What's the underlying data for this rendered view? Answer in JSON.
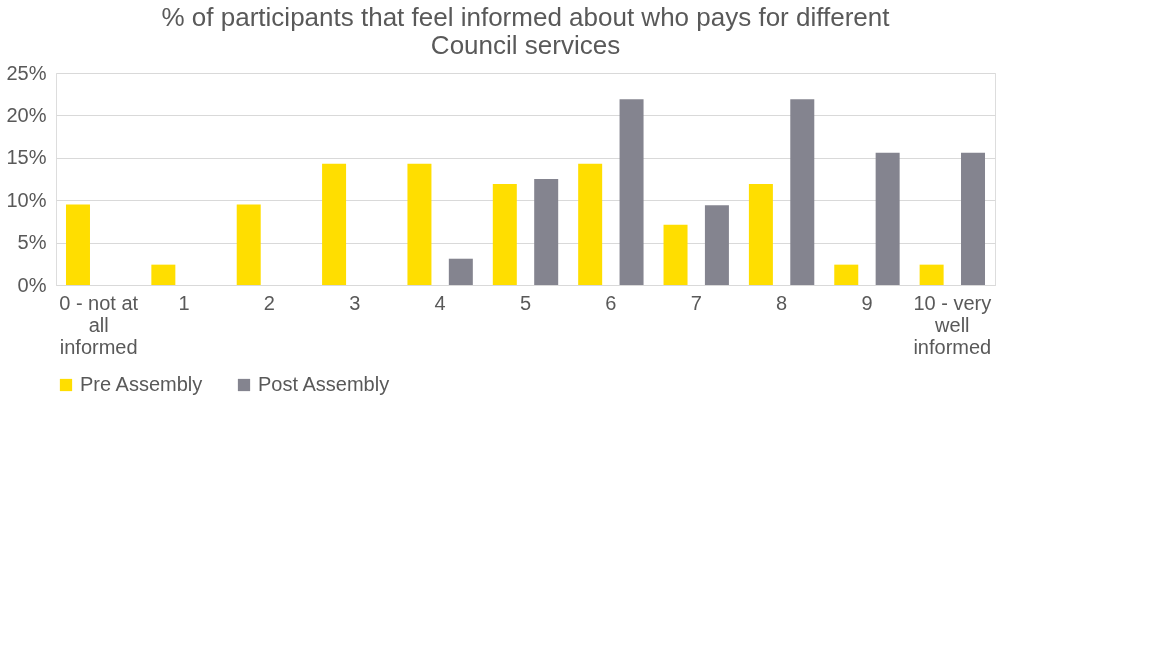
{
  "chart_data": {
    "type": "bar",
    "title": "% of participants that feel informed about who pays for different Council services",
    "categories": [
      "0 - not at all informed",
      "1",
      "2",
      "3",
      "4",
      "5",
      "6",
      "7",
      "8",
      "9",
      "10 - very well informed"
    ],
    "series": [
      {
        "name": "Pre Assembly",
        "color": "#ffde00",
        "values": [
          9.5,
          2.4,
          9.5,
          14.3,
          14.3,
          11.9,
          14.3,
          7.1,
          11.9,
          2.4,
          2.4
        ]
      },
      {
        "name": "Post Assembly",
        "color": "#84848f",
        "values": [
          0,
          0,
          0,
          0,
          3.1,
          12.5,
          21.9,
          9.4,
          21.9,
          15.6,
          15.6
        ]
      }
    ],
    "ylim": [
      0,
      25
    ],
    "yticks": [
      {
        "value": 0,
        "label": "0%"
      },
      {
        "value": 5,
        "label": "5%"
      },
      {
        "value": 10,
        "label": "10%"
      },
      {
        "value": 15,
        "label": "15%"
      },
      {
        "value": 20,
        "label": "20%"
      },
      {
        "value": 25,
        "label": "25%"
      }
    ],
    "grid": "y",
    "legend": "bottom"
  }
}
